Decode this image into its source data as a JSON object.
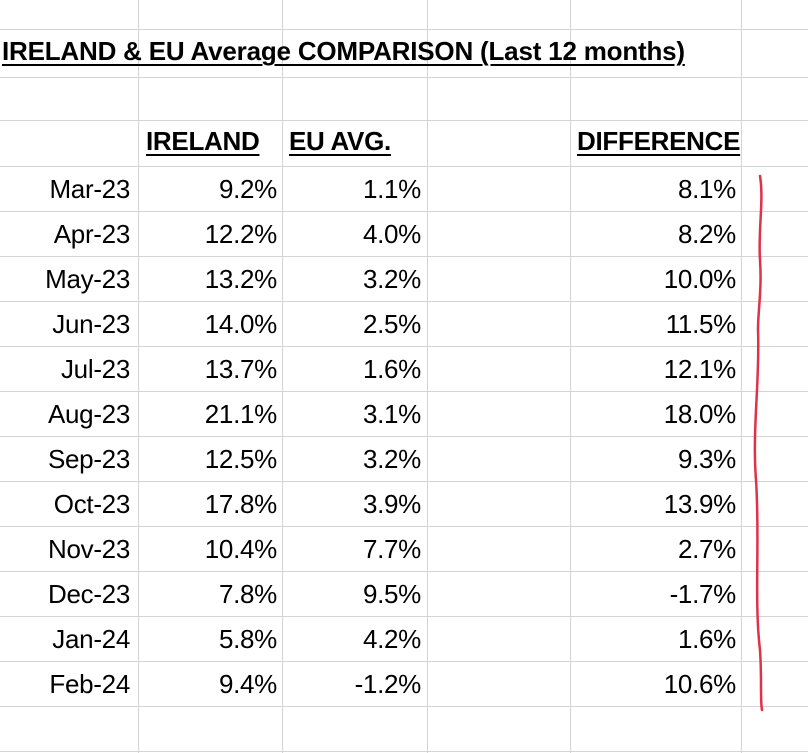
{
  "title": "IRELAND & EU Average COMPARISON (Last 12 months)",
  "headers": {
    "ireland": "IRELAND",
    "eu": "EU AVG.",
    "difference": "DIFFERENCE"
  },
  "rows": [
    {
      "month": "Mar-23",
      "ireland": "9.2%",
      "eu": "1.1%",
      "difference": "8.1%"
    },
    {
      "month": "Apr-23",
      "ireland": "12.2%",
      "eu": "4.0%",
      "difference": "8.2%"
    },
    {
      "month": "May-23",
      "ireland": "13.2%",
      "eu": "3.2%",
      "difference": "10.0%"
    },
    {
      "month": "Jun-23",
      "ireland": "14.0%",
      "eu": "2.5%",
      "difference": "11.5%"
    },
    {
      "month": "Jul-23",
      "ireland": "13.7%",
      "eu": "1.6%",
      "difference": "12.1%"
    },
    {
      "month": "Aug-23",
      "ireland": "21.1%",
      "eu": "3.1%",
      "difference": "18.0%"
    },
    {
      "month": "Sep-23",
      "ireland": "12.5%",
      "eu": "3.2%",
      "difference": "9.3%"
    },
    {
      "month": "Oct-23",
      "ireland": "17.8%",
      "eu": "3.9%",
      "difference": "13.9%"
    },
    {
      "month": "Nov-23",
      "ireland": "10.4%",
      "eu": "7.7%",
      "difference": "2.7%"
    },
    {
      "month": "Dec-23",
      "ireland": "7.8%",
      "eu": "9.5%",
      "difference": "-1.7%"
    },
    {
      "month": "Jan-24",
      "ireland": "5.8%",
      "eu": "4.2%",
      "difference": "1.6%"
    },
    {
      "month": "Feb-24",
      "ireland": "9.4%",
      "eu": "-1.2%",
      "difference": "10.6%"
    }
  ],
  "colors": {
    "gridline": "#d4d4d4",
    "annotation": "#e0314a"
  }
}
